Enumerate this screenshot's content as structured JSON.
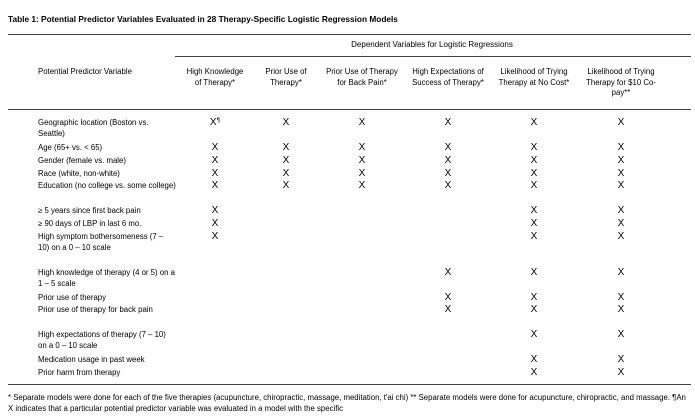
{
  "title": "Table 1: Potential Predictor Variables Evaluated in 28 Therapy-Specific Logistic Regression Models",
  "group_header": "Dependent Variables for Logistic Regressions",
  "first_column_header": "Potential Predictor Variable",
  "column_headers": [
    "High Knowledge of Therapy*",
    "Prior Use of Therapy*",
    "Prior Use of Therapy for Back Pain*",
    "High Expectations of Success of Therapy*",
    "Likelihood of Trying Therapy at No Cost*",
    "Likelihood of Trying Therapy for $10 Co-pay**"
  ],
  "mark_symbol": "X",
  "first_mark_superscript": "¶",
  "rows": [
    {
      "label": "Geographic location (Boston vs. Seattle)",
      "marks": [
        1,
        1,
        1,
        1,
        1,
        1
      ]
    },
    {
      "label": "Age (65+ vs. < 65)",
      "marks": [
        1,
        1,
        1,
        1,
        1,
        1
      ]
    },
    {
      "label": "Gender (female vs. male)",
      "marks": [
        1,
        1,
        1,
        1,
        1,
        1
      ]
    },
    {
      "label": "Race (white, non-white)",
      "marks": [
        1,
        1,
        1,
        1,
        1,
        1
      ]
    },
    {
      "label": "Education (no college vs. some college)",
      "marks": [
        1,
        1,
        1,
        1,
        1,
        1
      ]
    },
    {
      "label": "≥ 5 years since first back pain",
      "marks": [
        1,
        0,
        0,
        0,
        1,
        1
      ]
    },
    {
      "label": "≥ 90 days of LBP in last 6 mo.",
      "marks": [
        1,
        0,
        0,
        0,
        1,
        1
      ]
    },
    {
      "label": "High symptom bothersomeness (7 – 10) on a 0 – 10 scale",
      "marks": [
        1,
        0,
        0,
        0,
        1,
        1
      ]
    },
    {
      "label": "High knowledge of therapy (4 or 5) on a 1 – 5 scale",
      "marks": [
        0,
        0,
        0,
        1,
        1,
        1
      ]
    },
    {
      "label": "Prior use of therapy",
      "marks": [
        0,
        0,
        0,
        1,
        1,
        1
      ]
    },
    {
      "label": "Prior use of therapy for back pain",
      "marks": [
        0,
        0,
        0,
        1,
        1,
        1
      ]
    },
    {
      "label": "High expectations of therapy (7 – 10) on a 0 – 10 scale",
      "marks": [
        0,
        0,
        0,
        0,
        1,
        1
      ]
    },
    {
      "label": "Medication usage in past week",
      "marks": [
        0,
        0,
        0,
        0,
        1,
        1
      ]
    },
    {
      "label": "Prior harm from therapy",
      "marks": [
        0,
        0,
        0,
        0,
        1,
        1
      ]
    }
  ],
  "footnote": "* Separate models were done for each of the five therapies (acupuncture, chiropractic, massage, meditation, t'ai chi) ** Separate models were done for acupuncture, chiropractic, and massage. ¶An X indicates that a particular potential predictor variable was evaluated in a model with the specific"
}
